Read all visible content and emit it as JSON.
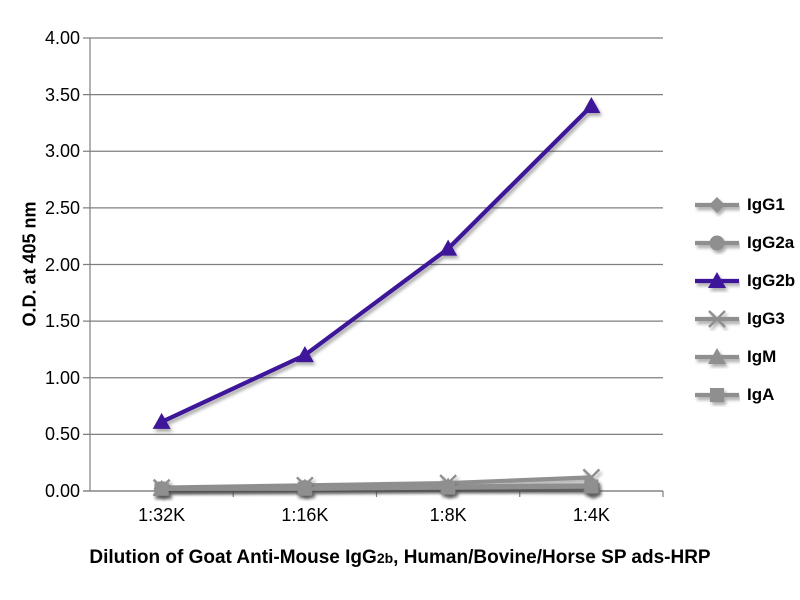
{
  "chart_data": {
    "type": "line",
    "ylabel": "O.D. at 405 nm",
    "xlabel": "Dilution of Goat Anti-Mouse IgG2b, Human/Bovine/Horse SP ads-HRP",
    "xlabel_parts": {
      "prefix": "Dilution of Goat Anti-Mouse IgG",
      "subscript": "2b",
      "suffix": ", Human/Bovine/Horse SP ads-HRP"
    },
    "categories": [
      "1:32K",
      "1:16K",
      "1:8K",
      "1:4K"
    ],
    "y_ticks": [
      "0.00",
      "0.50",
      "1.00",
      "1.50",
      "2.00",
      "2.50",
      "3.00",
      "3.50",
      "4.00"
    ],
    "ylim": [
      0,
      4
    ],
    "grid": true,
    "legend_position": "right",
    "colors": {
      "accent_purple": "#3E169A",
      "series_gray": "#8F8F8F",
      "grid_gray": "#7F7F7F",
      "text_black": "#000000"
    },
    "series": [
      {
        "name": "IgG1",
        "marker": "diamond",
        "color": "#8F8F8F",
        "values": [
          0.02,
          0.02,
          0.03,
          0.02
        ]
      },
      {
        "name": "IgG2a",
        "marker": "circle",
        "color": "#8F8F8F",
        "values": [
          0.02,
          0.03,
          0.03,
          0.03
        ]
      },
      {
        "name": "IgG2b",
        "marker": "triangle",
        "color": "#3E169A",
        "values": [
          0.61,
          1.2,
          2.14,
          3.4
        ]
      },
      {
        "name": "IgG3",
        "marker": "x",
        "color": "#8F8F8F",
        "values": [
          0.03,
          0.05,
          0.07,
          0.12
        ]
      },
      {
        "name": "IgM",
        "marker": "triangle",
        "color": "#8F8F8F",
        "values": [
          0.02,
          0.03,
          0.04,
          0.05
        ]
      },
      {
        "name": "IgA",
        "marker": "square",
        "color": "#8F8F8F",
        "values": [
          0.02,
          0.02,
          0.03,
          0.04
        ]
      }
    ]
  }
}
